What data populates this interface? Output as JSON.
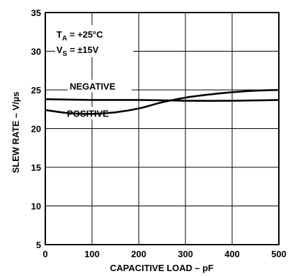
{
  "chart_data": {
    "type": "line",
    "title": "",
    "xlabel": "CAPACITIVE LOAD – pF",
    "ylabel": "SLEW RATE – V/µs",
    "xlim": [
      0,
      500
    ],
    "ylim": [
      5,
      35
    ],
    "xticks": [
      0,
      100,
      200,
      300,
      400,
      500
    ],
    "yticks": [
      5,
      10,
      15,
      20,
      25,
      30,
      35
    ],
    "grid": true,
    "conditions": {
      "ta": {
        "main": "T",
        "sub": "A",
        "rest": " = +25°C"
      },
      "vs": {
        "main": "V",
        "sub": "S",
        "rest": " = ±15V"
      }
    },
    "series": [
      {
        "name": "NEGATIVE",
        "x": [
          0,
          100,
          200,
          300,
          400,
          500
        ],
        "y": [
          23.8,
          23.7,
          23.7,
          23.6,
          23.6,
          23.7
        ]
      },
      {
        "name": "POSITIVE",
        "x": [
          0,
          50,
          100,
          150,
          200,
          250,
          300,
          350,
          400,
          450,
          500
        ],
        "y": [
          22.4,
          22.0,
          21.9,
          22.1,
          22.6,
          23.4,
          24.0,
          24.4,
          24.7,
          24.9,
          25.0
        ]
      }
    ]
  }
}
